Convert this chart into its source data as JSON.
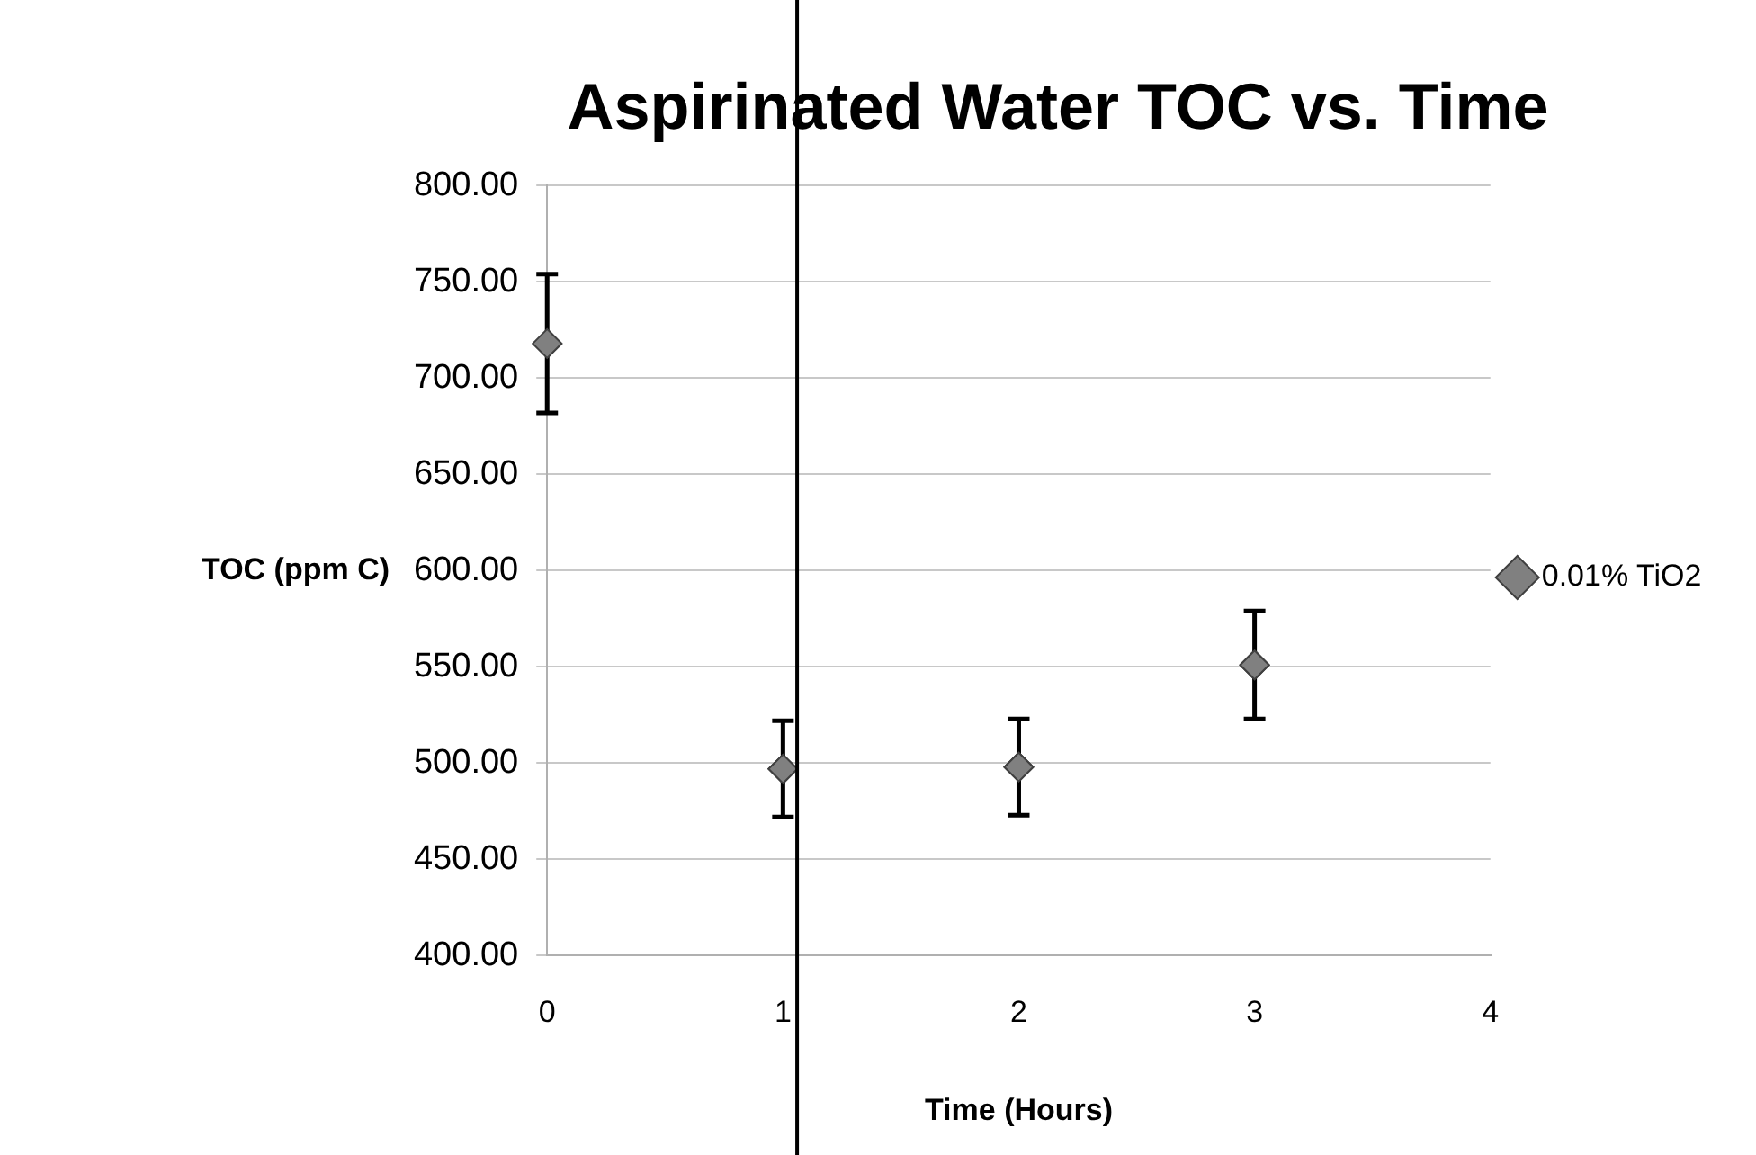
{
  "chart_data": {
    "type": "scatter",
    "title": "Aspirinated Water TOC vs. Time",
    "xlabel": "Time (Hours)",
    "ylabel": "TOC (ppm C)",
    "x": [
      0,
      1,
      2,
      3
    ],
    "series": [
      {
        "name": "0.01% TiO2",
        "color": "#808080",
        "values": [
          718,
          497,
          498,
          551
        ],
        "errors": [
          36,
          25,
          25,
          28
        ]
      }
    ],
    "xlim": [
      0,
      4
    ],
    "xticks": [
      0,
      1,
      2,
      3,
      4
    ],
    "ylim": [
      400,
      800
    ],
    "yticks": [
      {
        "value": 400,
        "label": "400.00"
      },
      {
        "value": 450,
        "label": "450.00"
      },
      {
        "value": 500,
        "label": "500.00"
      },
      {
        "value": 550,
        "label": "550.00"
      },
      {
        "value": 600,
        "label": "600.00"
      },
      {
        "value": 650,
        "label": "650.00"
      },
      {
        "value": 700,
        "label": "700.00"
      },
      {
        "value": 750,
        "label": "750.00"
      },
      {
        "value": 800,
        "label": "800.00"
      }
    ],
    "grid": "y",
    "legend": "right",
    "marker": "diamond",
    "ref_lines": [
      {
        "axis": "x",
        "value": 1.06,
        "color": "#000000"
      }
    ]
  }
}
